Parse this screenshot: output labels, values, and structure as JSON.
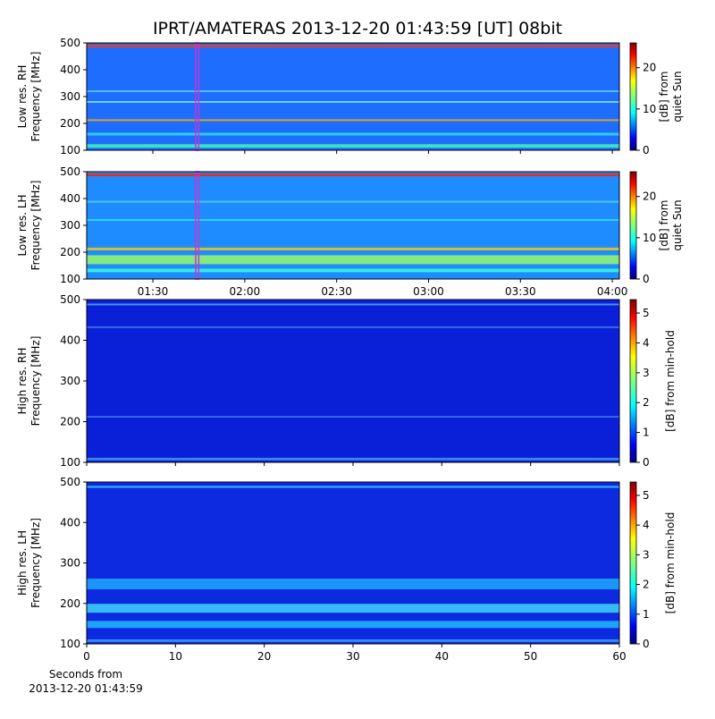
{
  "title": "IPRT/AMATERAS 2013-12-20 01:43:59 [UT]   08bit",
  "chart_data": [
    {
      "type": "spectrogram",
      "ylabel": [
        "Low res. RH",
        "Frequency [MHz]"
      ],
      "ylim": [
        100,
        500
      ],
      "yticks": [
        100,
        200,
        300,
        400,
        500
      ],
      "xlim": [
        68.4,
        242.3
      ],
      "xtick_labels": false,
      "xticks": [
        {
          "value": 90,
          "label": "01:30"
        },
        {
          "value": 120,
          "label": "02:00"
        },
        {
          "value": 150,
          "label": "02:30"
        },
        {
          "value": 180,
          "label": "03:00"
        },
        {
          "value": 210,
          "label": "03:30"
        },
        {
          "value": 240,
          "label": "04:00"
        }
      ],
      "window": [
        103.98,
        104.98
      ],
      "window_color": "#cc33cc",
      "base_color": "#1f6dff",
      "colorbar": {
        "label": [
          "[dB] from",
          "quiet Sun"
        ],
        "lim": [
          0,
          26
        ],
        "ticks": [
          0,
          10,
          20
        ]
      }
    },
    {
      "type": "spectrogram",
      "ylabel": [
        "Low res. LH",
        "Frequency [MHz]"
      ],
      "ylim": [
        100,
        500
      ],
      "yticks": [
        100,
        200,
        300,
        400,
        500
      ],
      "xlim": [
        68.4,
        242.3
      ],
      "xtick_labels": true,
      "xticks": [
        {
          "value": 90,
          "label": "01:30"
        },
        {
          "value": 120,
          "label": "02:00"
        },
        {
          "value": 150,
          "label": "02:30"
        },
        {
          "value": 180,
          "label": "03:00"
        },
        {
          "value": 210,
          "label": "03:30"
        },
        {
          "value": 240,
          "label": "04:00"
        }
      ],
      "window": [
        103.98,
        104.98
      ],
      "window_color": "#cc33cc",
      "base_color": "#1e8cff",
      "colorbar": {
        "label": [
          "[dB] from",
          "quiet Sun"
        ],
        "lim": [
          0,
          26
        ],
        "ticks": [
          0,
          10,
          20
        ]
      }
    },
    {
      "type": "spectrogram",
      "ylabel": [
        "High res. RH",
        "Frequency [MHz]"
      ],
      "ylim": [
        100,
        500
      ],
      "yticks": [
        100,
        200,
        300,
        400,
        500
      ],
      "xlim": [
        0,
        60
      ],
      "xtick_labels": false,
      "xticks": [
        0,
        10,
        20,
        30,
        40,
        50,
        60
      ],
      "base_color": "#0a1fd8",
      "colorbar": {
        "label": [
          "[dB] from min-hold"
        ],
        "lim": [
          0,
          5.45
        ],
        "ticks": [
          0,
          1,
          2,
          3,
          4,
          5
        ]
      }
    },
    {
      "type": "spectrogram",
      "ylabel": [
        "High res. LH",
        "Frequency [MHz]"
      ],
      "ylim": [
        100,
        500
      ],
      "yticks": [
        100,
        200,
        300,
        400,
        500
      ],
      "xlim": [
        0,
        60
      ],
      "xtick_labels": true,
      "xticks": [
        0,
        10,
        20,
        30,
        40,
        50,
        60
      ],
      "xlabel": [
        "Seconds from",
        "2013-12-20 01:43:59"
      ],
      "base_color": "#0d2ae0",
      "colorbar": {
        "label": [
          "[dB] from min-hold"
        ],
        "lim": [
          0,
          5.45
        ],
        "ticks": [
          0,
          1,
          2,
          3,
          4,
          5
        ]
      }
    }
  ]
}
